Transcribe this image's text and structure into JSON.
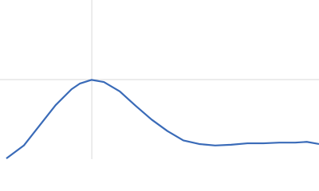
{
  "chart_data": {
    "type": "line",
    "x": [
      0.12,
      0.45,
      0.75,
      1.05,
      1.35,
      1.51,
      1.73,
      1.96,
      2.26,
      2.56,
      2.86,
      3.16,
      3.46,
      3.76,
      4.06,
      4.36,
      4.67,
      4.97,
      5.27,
      5.57,
      5.79,
      6.02
    ],
    "series": [
      {
        "color": "#3a6bb8",
        "values": [
          0.01,
          0.19,
          0.47,
          0.75,
          0.97,
          1.05,
          1.1,
          1.07,
          0.94,
          0.74,
          0.55,
          0.39,
          0.26,
          0.21,
          0.19,
          0.2,
          0.22,
          0.22,
          0.23,
          0.23,
          0.24,
          0.21
        ]
      }
    ],
    "xlim": [
      0,
      6.02
    ],
    "ylim": [
      0,
      2.208
    ],
    "reference_lines": {
      "x": 1.732,
      "y": 1.104
    }
  }
}
